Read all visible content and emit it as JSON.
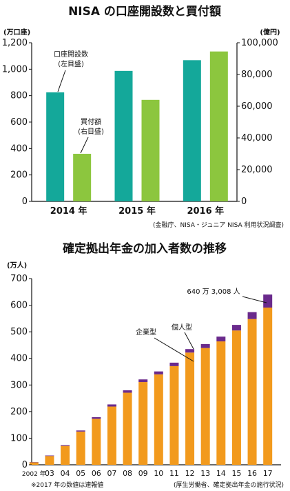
{
  "chart_data": [
    {
      "type": "bar",
      "title": "NISA の口座開設数と買付額",
      "categories": [
        "2014 年",
        "2015 年",
        "2016 年"
      ],
      "y_left_unit": "(万口座)",
      "y_right_unit": "(億円)",
      "ylim_left": [
        0,
        1200
      ],
      "ylim_right": [
        0,
        100000
      ],
      "ticks_left": [
        "0",
        "200",
        "400",
        "600",
        "800",
        "1,000",
        "1,200"
      ],
      "ticks_right": [
        "0",
        "20,000",
        "40,000",
        "60,000",
        "80,000",
        "100,000"
      ],
      "series": [
        {
          "name": "口座開設数",
          "axis_label": "(左目盛)",
          "axis": "left",
          "color": "#14a89a",
          "values": [
            825,
            987,
            1068
          ]
        },
        {
          "name": "買付額",
          "axis_label": "(右目盛)",
          "axis": "right",
          "color": "#8cc63e",
          "values": [
            30000,
            64000,
            94500
          ]
        }
      ],
      "source": "(金融庁、NISA・ジュニア NISA 利用状況調査)"
    },
    {
      "type": "bar",
      "stacked": true,
      "title": "確定拠出年金の加入者数の推移",
      "y_unit": "(万人)",
      "ylim": [
        0,
        700
      ],
      "ticks": [
        "0",
        "100",
        "200",
        "300",
        "400",
        "500",
        "600",
        "700"
      ],
      "categories": [
        "2002 年",
        "03",
        "04",
        "05",
        "06",
        "07",
        "08",
        "09",
        "10",
        "11",
        "12",
        "13",
        "14",
        "15",
        "16",
        "17"
      ],
      "series": [
        {
          "name": "企業型",
          "color": "#f29a1d",
          "values": [
            9,
            33,
            71,
            125,
            173,
            219,
            271,
            311,
            340,
            371,
            422,
            439,
            464,
            505,
            548,
            591
          ]
        },
        {
          "name": "個人型",
          "color": "#6a2a8c",
          "values": [
            1,
            2,
            3,
            4,
            6,
            8,
            9,
            10,
            11,
            13,
            13,
            15,
            18,
            21,
            26,
            49.08
          ]
        }
      ],
      "annotation_total": "640 万 3,008 人",
      "footnote": "※2017 年の数値は速報値",
      "source": "(厚生労働省、確定拠出年金の施行状況)"
    }
  ]
}
